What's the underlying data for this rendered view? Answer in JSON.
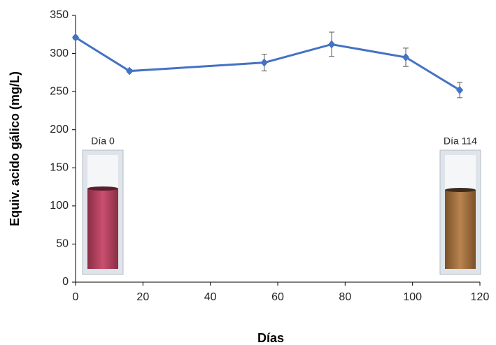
{
  "chart_data": {
    "type": "line",
    "x_label": "Días",
    "y_label": "Equiv. acido gálico (mg/L)",
    "annotations": [
      "Día 0",
      "Día 114"
    ],
    "x": [
      0,
      16,
      56,
      76,
      98,
      114
    ],
    "series": [
      {
        "color": "#4472c4",
        "values": [
          321,
          277,
          288,
          312,
          295,
          252
        ],
        "errors": [
          2,
          2,
          11,
          16,
          12,
          10
        ]
      }
    ],
    "xlim": [
      0,
      120
    ],
    "xticks": [
      0,
      20,
      40,
      60,
      80,
      100,
      120
    ],
    "ylim": [
      0,
      350
    ],
    "yticks": [
      0,
      50,
      100,
      150,
      200,
      250,
      300,
      350
    ],
    "grid": false
  }
}
